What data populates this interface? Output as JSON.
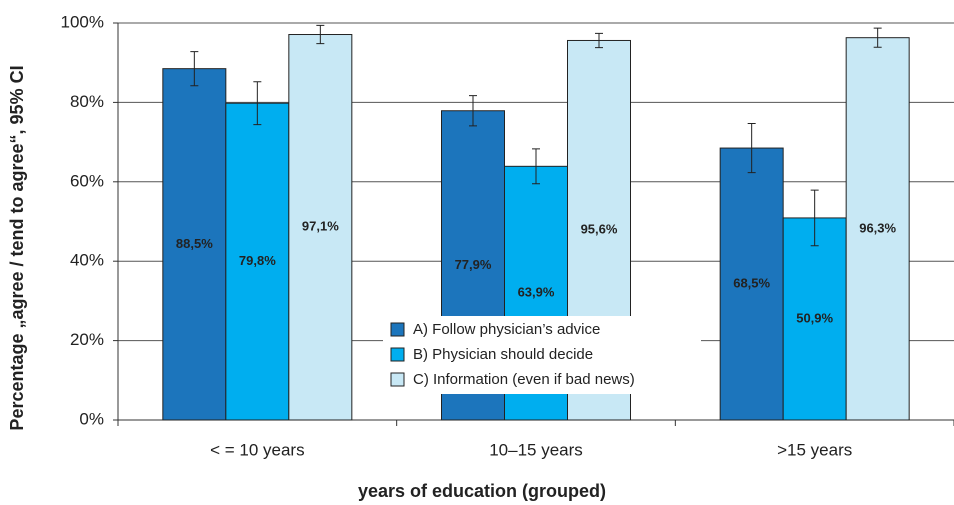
{
  "chart_data": {
    "type": "bar",
    "ylabel": "Percentage „agree / tend to agree“, 95% CI",
    "xlabel": "years of education (grouped)",
    "categories": [
      "< = 10 years",
      "10–15 years",
      ">15 years"
    ],
    "series": [
      {
        "name": "A) Follow physician’s advice",
        "color": "#1c75bc",
        "values": [
          88.5,
          77.9,
          68.5
        ],
        "value_labels": [
          "88,5%",
          "77,9%",
          "68,5%"
        ],
        "errors": [
          4.3,
          3.8,
          6.2
        ]
      },
      {
        "name": "B) Physician should decide",
        "color": "#00aeef",
        "values": [
          79.8,
          63.9,
          50.9
        ],
        "value_labels": [
          "79,8%",
          "63,9%",
          "50,9%"
        ],
        "errors": [
          5.4,
          4.4,
          7.0
        ]
      },
      {
        "name": "C) Information (even if bad news)",
        "color": "#c8e8f5",
        "values": [
          97.1,
          95.6,
          96.3
        ],
        "value_labels": [
          "97,1%",
          "95,6%",
          "96,3%"
        ],
        "errors": [
          2.3,
          1.8,
          2.4
        ]
      }
    ],
    "ylim": [
      0,
      100
    ],
    "yticks": [
      {
        "value": 0,
        "label": "0%"
      },
      {
        "value": 20,
        "label": "20%"
      },
      {
        "value": 40,
        "label": "40%"
      },
      {
        "value": 60,
        "label": "60%"
      },
      {
        "value": 80,
        "label": "80%"
      },
      {
        "value": 100,
        "label": "100%"
      }
    ],
    "grid": true,
    "legend": "bottom-center"
  }
}
